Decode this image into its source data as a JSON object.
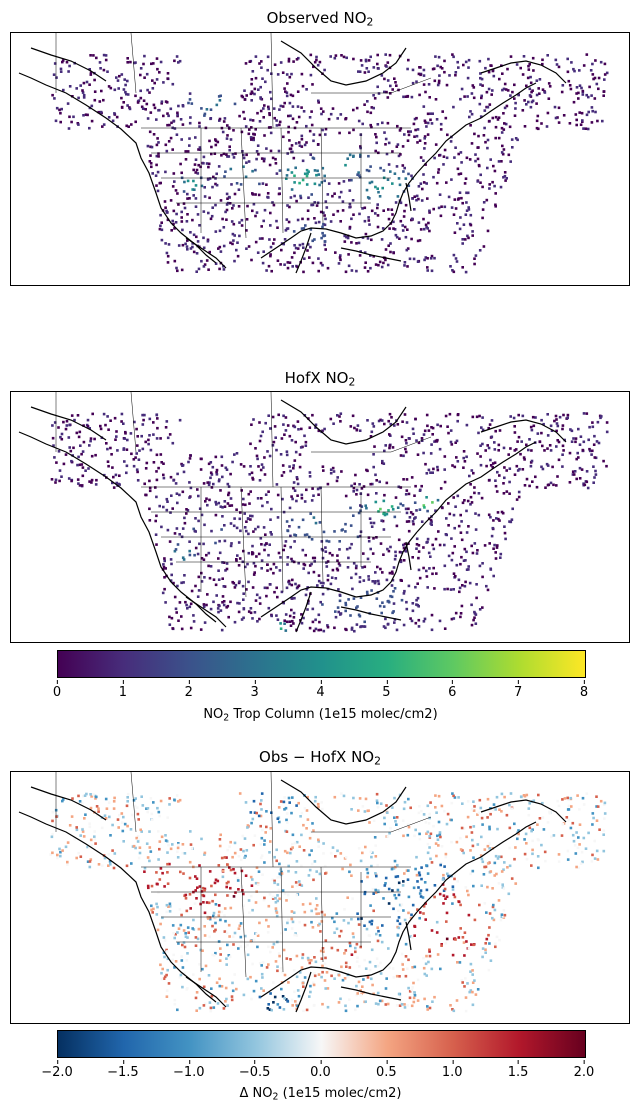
{
  "panels": [
    {
      "title_main": "Observed NO",
      "title_sub": "2",
      "title_prefix": ""
    },
    {
      "title_main": "HofX NO",
      "title_sub": "2",
      "title_prefix": ""
    },
    {
      "title_main": "NO",
      "title_sub": "2",
      "title_prefix": "Obs − HofX "
    }
  ],
  "colorbar_main": {
    "name": "viridis",
    "ticks": [
      "0",
      "1",
      "2",
      "3",
      "4",
      "5",
      "6",
      "7",
      "8"
    ],
    "label_pre": "NO",
    "label_sub": "2",
    "label_post": " Trop Column (1e15 molec/cm2)",
    "min": 0,
    "max": 8
  },
  "colorbar_diff": {
    "name": "RdBu_r",
    "ticks": [
      "−2.0",
      "−1.5",
      "−1.0",
      "−0.5",
      "0.0",
      "0.5",
      "1.0",
      "1.5",
      "2.0"
    ],
    "label_pre": "Δ NO",
    "label_sub": "2",
    "label_post": " (1e15 molec/cm2)",
    "min": -2,
    "max": 2
  },
  "colors": {
    "viridis": [
      "#440154",
      "#472d7b",
      "#3b528b",
      "#2c728e",
      "#21918c",
      "#28ae80",
      "#5ec962",
      "#addc30",
      "#fde725"
    ],
    "rdbu_r": [
      "#053061",
      "#2166ac",
      "#4393c3",
      "#92c5de",
      "#f7f7f7",
      "#f4a582",
      "#d6604d",
      "#b2182b",
      "#67001f"
    ]
  }
}
